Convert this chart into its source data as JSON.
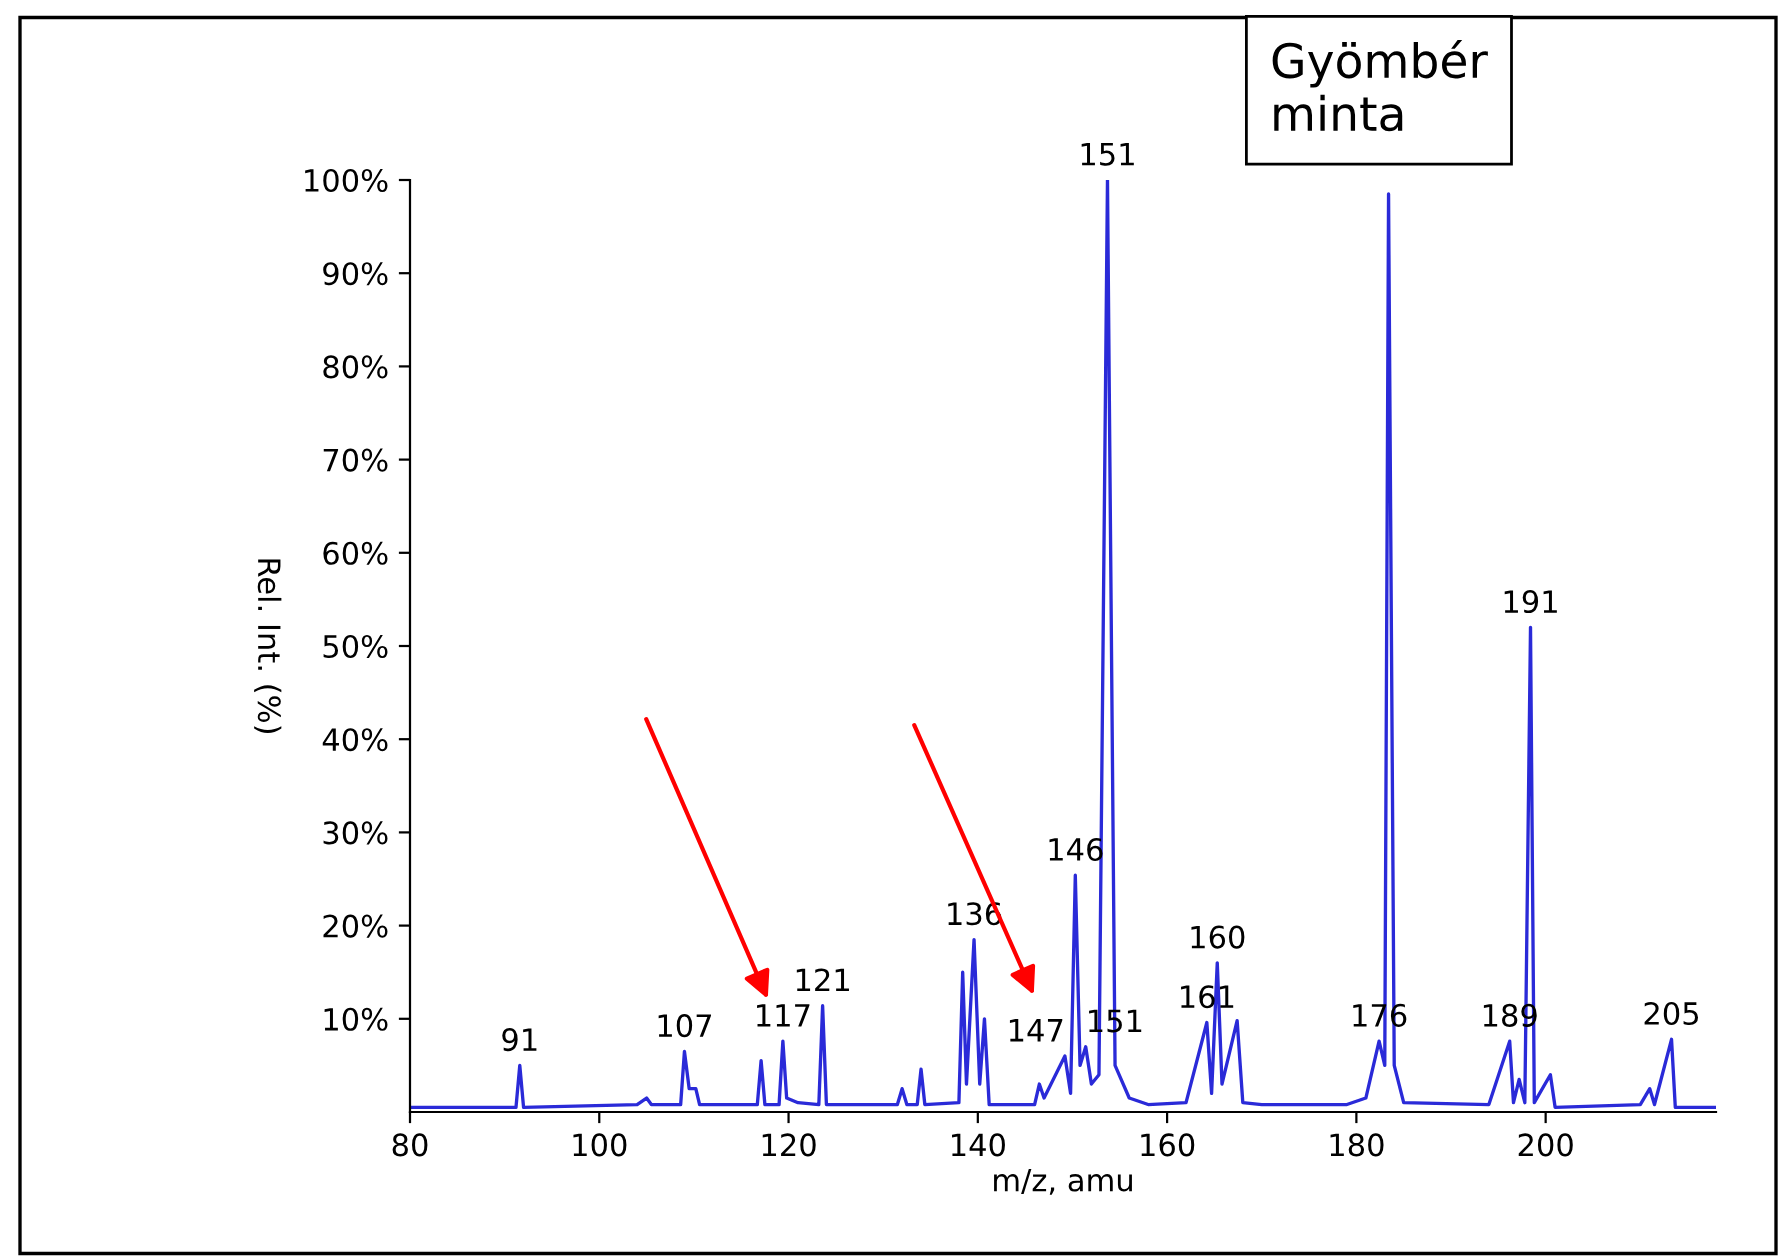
{
  "chart_data": {
    "type": "line",
    "xlabel": "m/z, amu",
    "ylabel": "Rel. Int. (%)",
    "x": [
      80,
      91.2,
      91.6,
      92,
      104,
      105,
      105.5,
      108.6,
      109,
      109.5,
      110.2,
      110.6,
      116.7,
      117.1,
      117.5,
      119,
      119.4,
      119.8,
      121,
      123.2,
      123.6,
      124,
      131.5,
      132,
      132.5,
      133.6,
      134,
      134.4,
      138,
      138.4,
      138.8,
      139.6,
      140.2,
      140.7,
      141.2,
      146,
      146.5,
      147,
      149.2,
      149.8,
      150.3,
      150.8,
      151.4,
      152,
      152.8,
      153.7,
      154.5,
      156,
      158,
      162,
      164.2,
      164.7,
      165.3,
      165.8,
      167.4,
      168,
      170,
      179,
      181,
      182.4,
      183,
      183.4,
      184,
      185,
      194,
      196.2,
      196.6,
      197.2,
      197.8,
      198.4,
      198.8,
      200.5,
      201,
      210,
      211,
      211.5,
      213.3,
      213.7,
      218
    ],
    "series": [
      {
        "color": "#2a2ad8",
        "values": [
          0.5,
          0.5,
          5,
          0.5,
          0.8,
          1.5,
          0.8,
          0.8,
          6.5,
          2.5,
          2.5,
          0.8,
          0.8,
          5.5,
          0.8,
          0.8,
          7.6,
          1.5,
          1,
          0.8,
          11.4,
          0.8,
          0.8,
          2.5,
          0.8,
          0.8,
          4.6,
          0.8,
          1,
          15,
          3,
          18.5,
          3,
          10,
          0.8,
          0.8,
          3,
          1.5,
          6,
          2,
          25.4,
          5,
          7,
          3,
          4,
          100,
          5,
          1.5,
          0.8,
          1,
          9.6,
          2,
          16,
          3,
          9.8,
          1,
          0.8,
          0.8,
          1.5,
          7.6,
          5,
          98.5,
          5,
          1,
          0.8,
          7.6,
          1,
          3.5,
          1,
          52,
          1,
          4,
          0.5,
          0.8,
          2.5,
          0.8,
          7.8,
          0.5,
          0.5
        ]
      }
    ],
    "xlim": [
      80,
      218
    ],
    "xticks": [
      80,
      100,
      120,
      140,
      160,
      180,
      200
    ],
    "ylim": [
      0,
      100
    ],
    "yticks": [
      {
        "value": 10,
        "label": "10%"
      },
      {
        "value": 20,
        "label": "20%"
      },
      {
        "value": 30,
        "label": "30%"
      },
      {
        "value": 40,
        "label": "40%"
      },
      {
        "value": 50,
        "label": "50%"
      },
      {
        "value": 60,
        "label": "60%"
      },
      {
        "value": 70,
        "label": "70%"
      },
      {
        "value": 80,
        "label": "80%"
      },
      {
        "value": 90,
        "label": "90%"
      },
      {
        "value": 100,
        "label": "100%"
      }
    ],
    "grid": false,
    "marker": "none",
    "line_style": "solid",
    "annotations": [
      {
        "text": "91",
        "x": 91.6,
        "y": 5
      },
      {
        "text": "107",
        "x": 109,
        "y": 6.5
      },
      {
        "text": "117",
        "x": 119.4,
        "y": 7.6
      },
      {
        "text": "121",
        "x": 123.6,
        "y": 11.4
      },
      {
        "text": "136",
        "x": 139.6,
        "y": 18.5
      },
      {
        "text": "147",
        "x": 149.2,
        "y": 6
      },
      {
        "text": "151",
        "x": 151.4,
        "y": 7
      },
      {
        "text": "146",
        "x": 150.3,
        "y": 25.4
      },
      {
        "text": "151",
        "x": 153.7,
        "y": 100
      },
      {
        "text": "160",
        "x": 165.3,
        "y": 16
      },
      {
        "text": "161",
        "x": 164.2,
        "y": 9.6
      },
      {
        "text": "176",
        "x": 182.4,
        "y": 7.6
      },
      {
        "text": "189",
        "x": 196.2,
        "y": 7.6
      },
      {
        "text": "191",
        "x": 198.4,
        "y": 52
      },
      {
        "text": "205",
        "x": 213.3,
        "y": 7.8
      },
      "Gyömbér\nminta"
    ]
  }
}
